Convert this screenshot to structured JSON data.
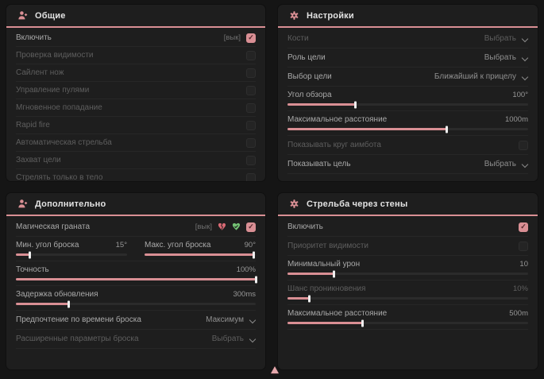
{
  "theme": {
    "accent": "#d98f94",
    "panel_bg": "#1e1e1e",
    "page_bg": "#151515",
    "green_icon": "#74c274",
    "red_icon": "#d96a74"
  },
  "panels": {
    "general": {
      "title": "Общие",
      "rows": [
        {
          "label": "Включить",
          "suffix": "[вык]",
          "checked": true
        },
        {
          "label": "Проверка видимости",
          "checked": false
        },
        {
          "label": "Сайлент нож",
          "checked": false
        },
        {
          "label": "Управление пулями",
          "checked": false
        },
        {
          "label": "Мгновенное попадание",
          "checked": false
        },
        {
          "label": "Rapid fire",
          "checked": false
        },
        {
          "label": "Автоматическая стрельба",
          "checked": false
        },
        {
          "label": "Захват цели",
          "checked": false
        },
        {
          "label": "Стрелять только в тело",
          "checked": false
        }
      ]
    },
    "settings": {
      "title": "Настройки",
      "rows": [
        {
          "label": "Кости",
          "value": "Выбрать"
        },
        {
          "label": "Роль цели",
          "value": "Выбрать"
        },
        {
          "label": "Выбор цели",
          "value": "Ближайший к прицелу"
        },
        {
          "label": "Угол обзора",
          "value": "100°",
          "fill": 28
        },
        {
          "label": "Максимальное расстояние",
          "value": "1000m",
          "fill": 66
        },
        {
          "label": "Показывать круг аимбота",
          "checked": false
        },
        {
          "label": "Показывать цель",
          "value": "Выбрать"
        }
      ]
    },
    "additional": {
      "title": "Дополнительно",
      "rows": [
        {
          "label": "Магическая граната",
          "suffix": "[вык]",
          "checked": true,
          "icons": [
            "broken-heart-icon",
            "heart-check-icon"
          ]
        },
        {
          "label": "Мин. угол броска",
          "value": "15°",
          "fill": 12
        },
        {
          "label": "Макс. угол броска",
          "value": "90°",
          "fill": 98
        },
        {
          "label": "Точность",
          "value": "100%",
          "fill": 100
        },
        {
          "label": "Задержка обновления",
          "value": "300ms",
          "fill": 22
        },
        {
          "label": "Предпочтение по времени броска",
          "value": "Максимум"
        },
        {
          "label": "Расширенные параметры броска",
          "value": "Выбрать"
        }
      ]
    },
    "wallbang": {
      "title": "Стрельба через стены",
      "rows": [
        {
          "label": "Включить",
          "checked": true
        },
        {
          "label": "Приоритет видимости",
          "checked": false
        },
        {
          "label": "Минимальный урон",
          "value": "10",
          "fill": 19
        },
        {
          "label": "Шанс проникновения",
          "value": "10%",
          "fill": 9
        },
        {
          "label": "Максимальное расстояние",
          "value": "500m",
          "fill": 31
        }
      ]
    }
  }
}
